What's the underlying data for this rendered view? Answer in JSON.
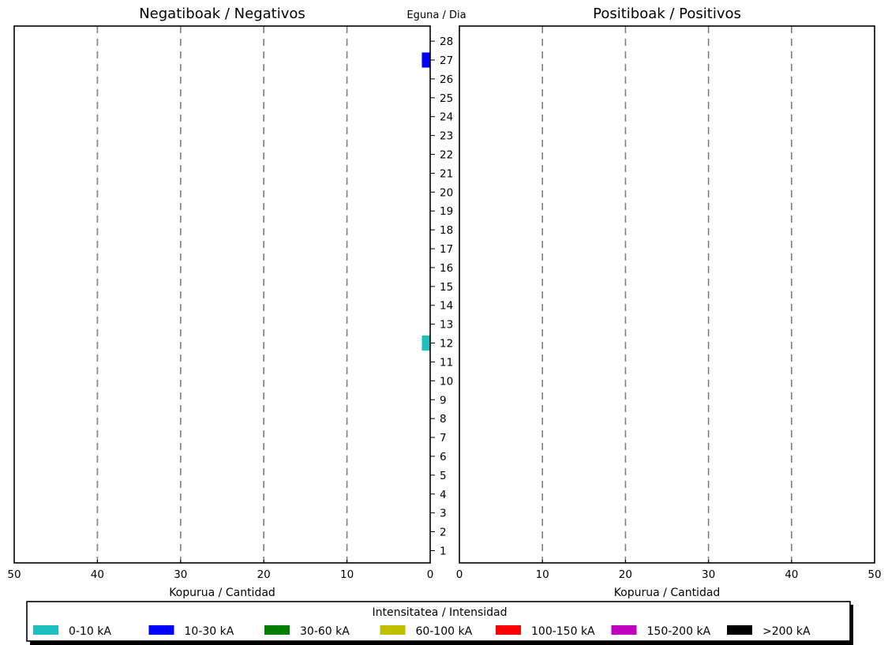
{
  "chart_data": {
    "type": "bar",
    "orientation": "horizontal",
    "center_label": "Eguna / Dia",
    "days": [
      1,
      2,
      3,
      4,
      5,
      6,
      7,
      8,
      9,
      10,
      11,
      12,
      13,
      14,
      15,
      16,
      17,
      18,
      19,
      20,
      21,
      22,
      23,
      24,
      25,
      26,
      27,
      28
    ],
    "panels": [
      {
        "title": "Negatiboak / Negativos",
        "xlabel": "Kopurua / Cantidad",
        "xlim": [
          50,
          0
        ],
        "xticks": [
          50,
          40,
          30,
          20,
          10,
          0
        ],
        "grid": "dashed-vertical",
        "bars": [
          {
            "day": 27,
            "category": "10-30 kA",
            "value": 1
          },
          {
            "day": 12,
            "category": "0-10 kA",
            "value": 1
          }
        ]
      },
      {
        "title": "Positiboak / Positivos",
        "xlabel": "Kopurua / Cantidad",
        "xlim": [
          0,
          50
        ],
        "xticks": [
          0,
          10,
          20,
          30,
          40,
          50
        ],
        "grid": "dashed-vertical",
        "bars": []
      }
    ],
    "legend": {
      "title": "Intensitatea / Intensidad",
      "placement": "bottom",
      "items": [
        {
          "label": "0-10 kA",
          "color": "#1fbfbf"
        },
        {
          "label": "10-30 kA",
          "color": "#0000ff"
        },
        {
          "label": "30-60 kA",
          "color": "#008000"
        },
        {
          "label": "60-100 kA",
          "color": "#bfbf00"
        },
        {
          "label": "100-150 kA",
          "color": "#ff0000"
        },
        {
          "label": "150-200 kA",
          "color": "#bf00bf"
        },
        {
          "label": ">200 kA",
          "color": "#000000"
        }
      ]
    }
  }
}
